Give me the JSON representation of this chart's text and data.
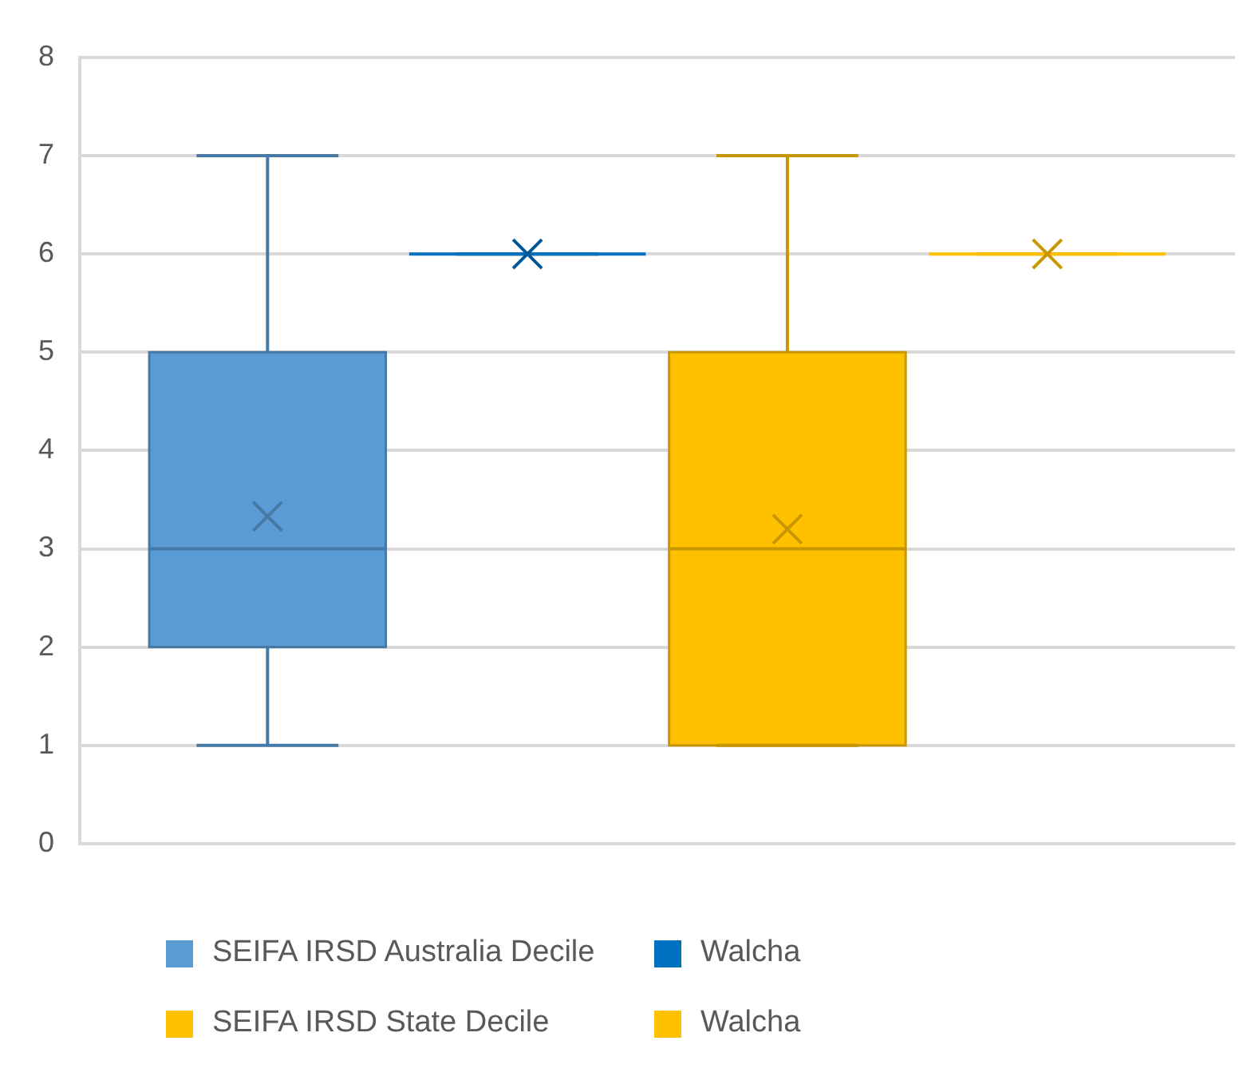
{
  "chart_data": {
    "type": "box",
    "categories": [
      null
    ],
    "ylim": [
      0,
      8
    ],
    "yticks": [
      0,
      1,
      2,
      3,
      4,
      5,
      6,
      7,
      8
    ],
    "grid": "y",
    "legend": "bottom",
    "marker": "cross",
    "series": [
      {
        "name": "SEIFA IRSD Australia Decile",
        "color": "#5b9bd5",
        "boxes": [
          {
            "low": 1,
            "q1": 2,
            "median": 3,
            "q3": 5,
            "high": 7,
            "mean": 3.33
          }
        ]
      },
      {
        "name": "Walcha",
        "color": "#0070c0",
        "boxes": [
          {
            "low": 6,
            "q1": 6,
            "median": 6,
            "q3": 6,
            "high": 6,
            "mean": 6
          }
        ]
      },
      {
        "name": "SEIFA IRSD State Decile",
        "color": "#ffc000",
        "boxes": [
          {
            "low": 1,
            "q1": 1,
            "median": 3,
            "q3": 5,
            "high": 7,
            "mean": 3.2
          }
        ]
      },
      {
        "name": "Walcha",
        "color": "#ffc000",
        "boxes": [
          {
            "low": 6,
            "q1": 6,
            "median": 6,
            "q3": 6,
            "high": 6,
            "mean": 6
          }
        ]
      }
    ]
  }
}
